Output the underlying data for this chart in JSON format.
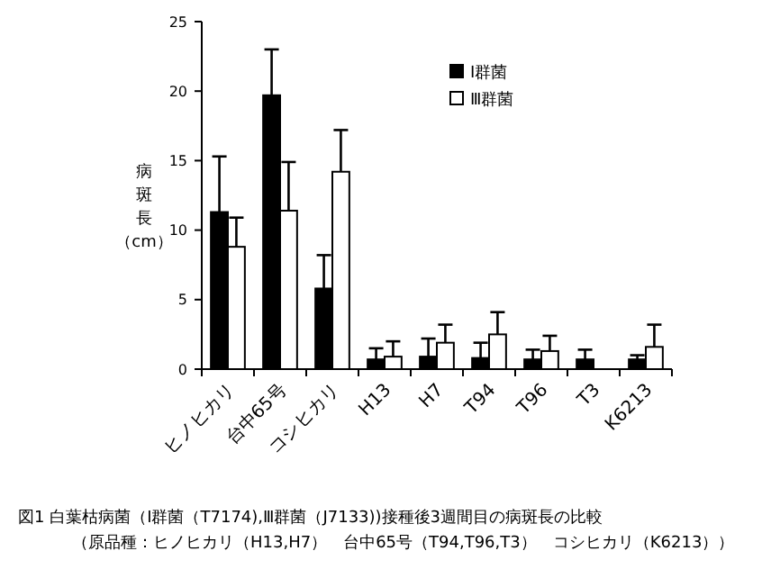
{
  "chart_data": {
    "type": "bar",
    "ylabel": "病斑長（cm）",
    "categories": [
      "ヒノヒカリ",
      "台中65号",
      "コシヒカリ",
      "H13",
      "H7",
      "T94",
      "T96",
      "T3",
      "K6213"
    ],
    "series": [
      {
        "name": "Ⅰ群菌",
        "color": "#000000",
        "values": [
          11.3,
          19.7,
          5.8,
          0.7,
          0.9,
          0.8,
          0.7,
          0.7,
          0.7
        ],
        "errors": [
          [
            11.3,
            15.3
          ],
          [
            19.7,
            23.0
          ],
          [
            5.8,
            8.2
          ],
          [
            0.7,
            1.5
          ],
          [
            0.9,
            2.2
          ],
          [
            0.8,
            1.9
          ],
          [
            0.7,
            1.4
          ],
          [
            0.7,
            1.4
          ],
          [
            0.7,
            1.0
          ]
        ]
      },
      {
        "name": "Ⅲ群菌",
        "color": "#ffffff",
        "values": [
          8.8,
          11.4,
          14.2,
          0.9,
          1.9,
          2.5,
          1.3,
          null,
          1.6
        ],
        "errors": [
          [
            8.8,
            10.9
          ],
          [
            11.4,
            14.9
          ],
          [
            14.2,
            17.2
          ],
          [
            0.9,
            2.0
          ],
          [
            1.9,
            3.2
          ],
          [
            2.5,
            4.1
          ],
          [
            1.3,
            2.4
          ],
          null,
          [
            1.6,
            3.2
          ]
        ]
      }
    ],
    "ylim": [
      0,
      25
    ],
    "yticks": [
      0,
      5,
      10,
      15,
      20,
      25
    ],
    "grid": false,
    "legend": "top right",
    "annotations": [
      "図1 白葉枯病菌（Ⅰ群菌（T7174),Ⅲ群菌（J7133))接種後3週間目の病斑長の比較",
      "（原品種：ヒノヒカリ（H13,H7）　台中65号（T94,T96,T3）　コシヒカリ（K6213））"
    ]
  }
}
